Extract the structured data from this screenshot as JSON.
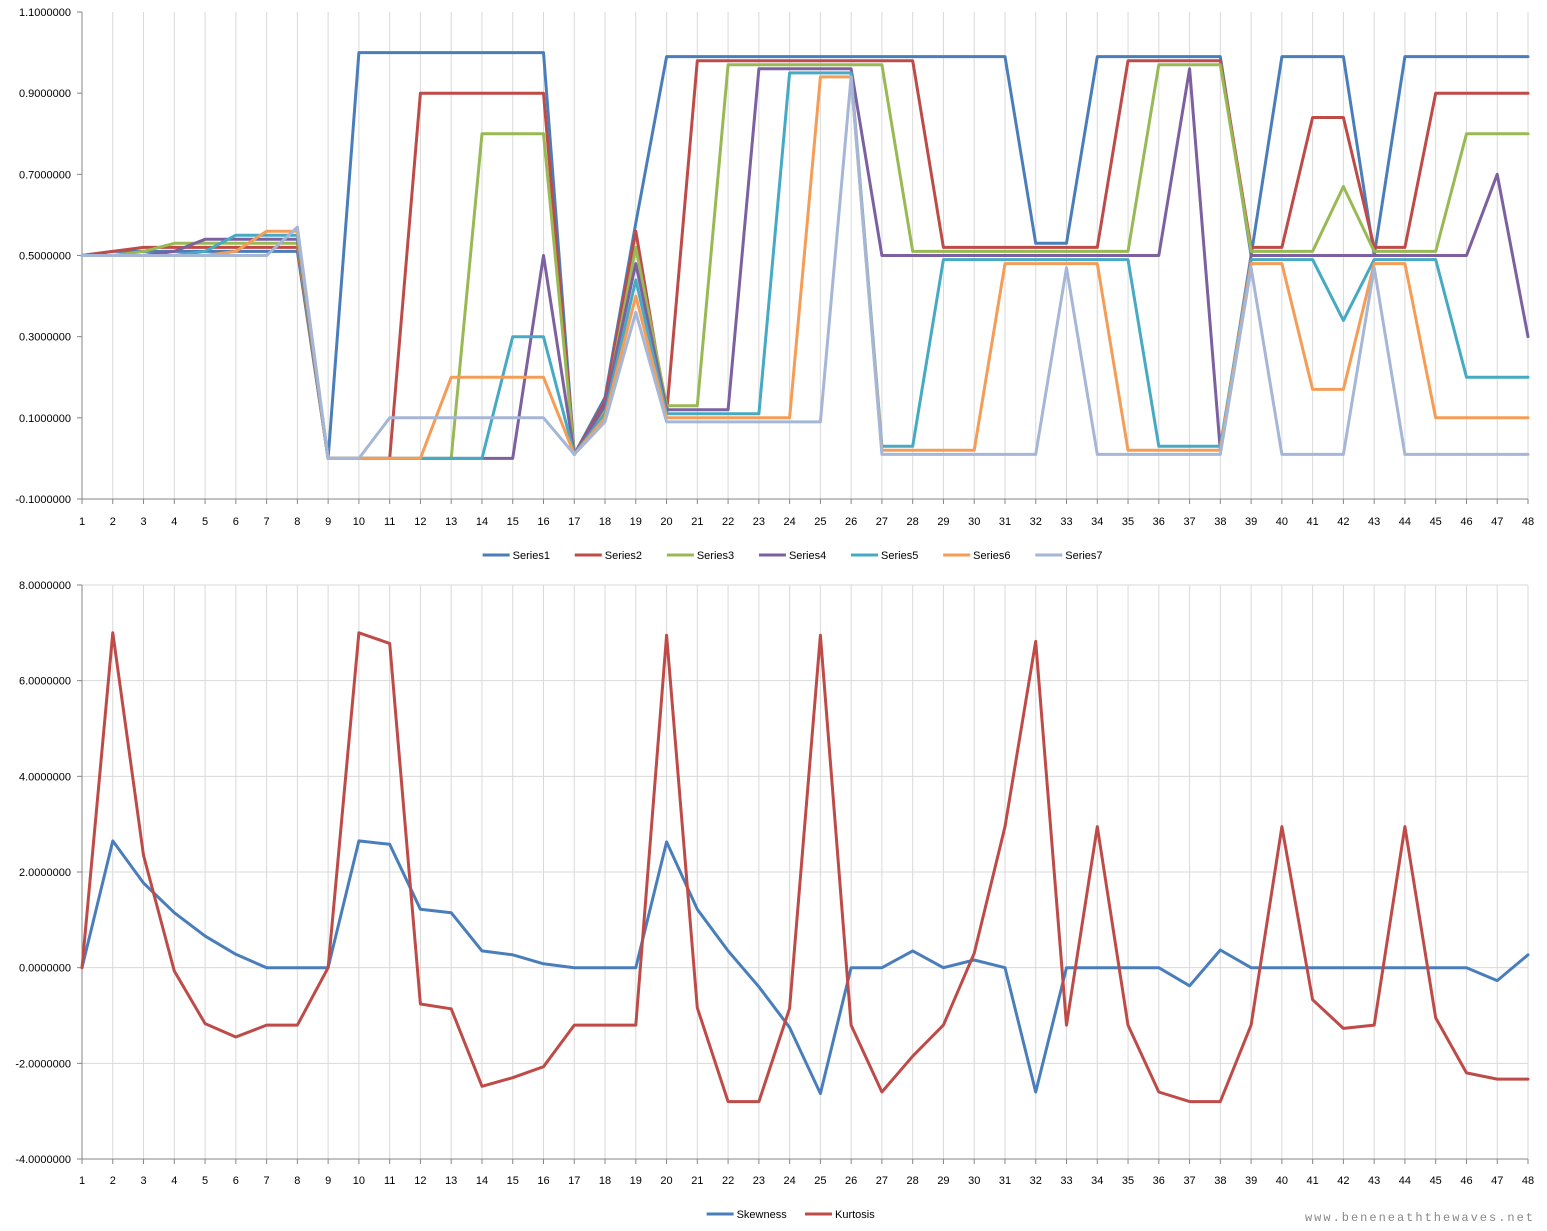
{
  "watermark": "www.beneneaththewaves.net",
  "chart_data": [
    {
      "type": "line",
      "title": "",
      "xlabel": "",
      "ylabel": "",
      "ylim": [
        -0.1,
        1.1
      ],
      "y_ticks": [
        "-0.1000000",
        "0.1000000",
        "0.3000000",
        "0.5000000",
        "0.7000000",
        "0.9000000",
        "1.1000000"
      ],
      "y_tick_values": [
        -0.1,
        0.1,
        0.3,
        0.5,
        0.7,
        0.9,
        1.1
      ],
      "grid": "vertical",
      "legend_position": "bottom",
      "x": [
        1,
        2,
        3,
        4,
        5,
        6,
        7,
        8,
        9,
        10,
        11,
        12,
        13,
        14,
        15,
        16,
        17,
        18,
        19,
        20,
        21,
        22,
        23,
        24,
        25,
        26,
        27,
        28,
        29,
        30,
        31,
        32,
        33,
        34,
        35,
        36,
        37,
        38,
        39,
        40,
        41,
        42,
        43,
        44,
        45,
        46,
        47,
        48
      ],
      "series": [
        {
          "name": "Series1",
          "color": "#4a7ebb",
          "values": [
            0.5,
            0.51,
            0.51,
            0.51,
            0.51,
            0.51,
            0.51,
            0.51,
            0,
            1.0,
            1.0,
            1.0,
            1.0,
            1.0,
            1.0,
            1.0,
            0.01,
            0.15,
            0.58,
            0.99,
            0.99,
            0.99,
            0.99,
            0.99,
            0.99,
            0.99,
            0.99,
            0.99,
            0.99,
            0.99,
            0.99,
            0.53,
            0.53,
            0.99,
            0.99,
            0.99,
            0.99,
            0.99,
            0.5,
            0.99,
            0.99,
            0.99,
            0.5,
            0.99,
            0.99,
            0.99,
            0.99,
            0.99
          ]
        },
        {
          "name": "Series2",
          "color": "#be4b48",
          "values": [
            0.5,
            0.51,
            0.52,
            0.52,
            0.52,
            0.52,
            0.52,
            0.52,
            0,
            0,
            0,
            0.9,
            0.9,
            0.9,
            0.9,
            0.9,
            0.01,
            0.14,
            0.56,
            0.11,
            0.98,
            0.98,
            0.98,
            0.98,
            0.98,
            0.98,
            0.98,
            0.98,
            0.52,
            0.52,
            0.52,
            0.52,
            0.52,
            0.52,
            0.98,
            0.98,
            0.98,
            0.98,
            0.52,
            0.52,
            0.84,
            0.84,
            0.52,
            0.52,
            0.9,
            0.9,
            0.9,
            0.9
          ]
        },
        {
          "name": "Series3",
          "color": "#98b954",
          "values": [
            0.5,
            0.5,
            0.51,
            0.53,
            0.53,
            0.53,
            0.53,
            0.53,
            0,
            0,
            0,
            0,
            0,
            0.8,
            0.8,
            0.8,
            0.01,
            0.12,
            0.52,
            0.13,
            0.13,
            0.97,
            0.97,
            0.97,
            0.97,
            0.97,
            0.97,
            0.51,
            0.51,
            0.51,
            0.51,
            0.51,
            0.51,
            0.51,
            0.51,
            0.97,
            0.97,
            0.97,
            0.51,
            0.51,
            0.51,
            0.67,
            0.51,
            0.51,
            0.51,
            0.8,
            0.8,
            0.8
          ]
        },
        {
          "name": "Series4",
          "color": "#7d60a0",
          "values": [
            0.5,
            0.5,
            0.5,
            0.51,
            0.54,
            0.54,
            0.54,
            0.54,
            0,
            0,
            0,
            0,
            0,
            0,
            0,
            0.5,
            0.01,
            0.13,
            0.48,
            0.12,
            0.12,
            0.12,
            0.96,
            0.96,
            0.96,
            0.96,
            0.5,
            0.5,
            0.5,
            0.5,
            0.5,
            0.5,
            0.5,
            0.5,
            0.5,
            0.5,
            0.96,
            0.02,
            0.5,
            0.5,
            0.5,
            0.5,
            0.5,
            0.5,
            0.5,
            0.5,
            0.7,
            0.3
          ]
        },
        {
          "name": "Series5",
          "color": "#46aac4",
          "values": [
            0.5,
            0.5,
            0.5,
            0.5,
            0.51,
            0.55,
            0.55,
            0.55,
            0,
            0,
            0,
            0,
            0,
            0,
            0.3,
            0.3,
            0.01,
            0.11,
            0.44,
            0.11,
            0.11,
            0.11,
            0.11,
            0.95,
            0.95,
            0.95,
            0.03,
            0.03,
            0.49,
            0.49,
            0.49,
            0.49,
            0.49,
            0.49,
            0.49,
            0.03,
            0.03,
            0.03,
            0.49,
            0.49,
            0.49,
            0.34,
            0.49,
            0.49,
            0.49,
            0.2,
            0.2,
            0.2
          ]
        },
        {
          "name": "Series6",
          "color": "#f59d56",
          "values": [
            0.5,
            0.5,
            0.5,
            0.5,
            0.5,
            0.51,
            0.56,
            0.56,
            0,
            0,
            0,
            0,
            0.2,
            0.2,
            0.2,
            0.2,
            0.01,
            0.1,
            0.4,
            0.1,
            0.1,
            0.1,
            0.1,
            0.1,
            0.94,
            0.94,
            0.02,
            0.02,
            0.02,
            0.02,
            0.48,
            0.48,
            0.48,
            0.48,
            0.02,
            0.02,
            0.02,
            0.02,
            0.48,
            0.48,
            0.17,
            0.17,
            0.48,
            0.48,
            0.1,
            0.1,
            0.1,
            0.1
          ]
        },
        {
          "name": "Series7",
          "color": "#a5b6d6",
          "values": [
            0.5,
            0.5,
            0.5,
            0.5,
            0.5,
            0.5,
            0.5,
            0.57,
            0,
            0,
            0.1,
            0.1,
            0.1,
            0.1,
            0.1,
            0.1,
            0.01,
            0.09,
            0.36,
            0.09,
            0.09,
            0.09,
            0.09,
            0.09,
            0.09,
            0.94,
            0.01,
            0.01,
            0.01,
            0.01,
            0.01,
            0.01,
            0.47,
            0.01,
            0.01,
            0.01,
            0.01,
            0.01,
            0.47,
            0.01,
            0.01,
            0.01,
            0.47,
            0.01,
            0.01,
            0.01,
            0.01,
            0.01
          ]
        }
      ]
    },
    {
      "type": "line",
      "title": "",
      "xlabel": "",
      "ylabel": "",
      "ylim": [
        -4,
        8
      ],
      "y_ticks": [
        "-4.0000000",
        "-2.0000000",
        "0.0000000",
        "2.0000000",
        "4.0000000",
        "6.0000000",
        "8.0000000"
      ],
      "y_tick_values": [
        -4,
        -2,
        0,
        2,
        4,
        6,
        8
      ],
      "grid": "both",
      "legend_position": "bottom",
      "x": [
        1,
        2,
        3,
        4,
        5,
        6,
        7,
        8,
        9,
        10,
        11,
        12,
        13,
        14,
        15,
        16,
        17,
        18,
        19,
        20,
        21,
        22,
        23,
        24,
        25,
        26,
        27,
        28,
        29,
        30,
        31,
        32,
        33,
        34,
        35,
        36,
        37,
        38,
        39,
        40,
        41,
        42,
        43,
        44,
        45,
        46,
        47,
        48
      ],
      "series": [
        {
          "name": "Skewness",
          "color": "#4a7ebb",
          "values": [
            0,
            2.65,
            1.77,
            1.15,
            0.66,
            0.28,
            0,
            0,
            0,
            2.65,
            2.58,
            1.22,
            1.15,
            0.35,
            0.27,
            0.08,
            0,
            0,
            0,
            2.63,
            1.22,
            0.35,
            -0.4,
            -1.25,
            -2.63,
            0,
            0,
            0.35,
            0,
            0.16,
            0,
            -2.6,
            0,
            0,
            0,
            0,
            -0.38,
            0.37,
            0,
            0,
            0,
            0,
            0,
            0,
            0,
            0,
            -0.27,
            0.27
          ]
        },
        {
          "name": "Kurtosis",
          "color": "#be4b48",
          "values": [
            0,
            7.0,
            2.35,
            -0.07,
            -1.17,
            -1.45,
            -1.2,
            -1.2,
            0,
            7.0,
            6.78,
            -0.76,
            -0.86,
            -2.48,
            -2.3,
            -2.07,
            -1.2,
            -1.2,
            -1.2,
            6.95,
            -0.84,
            -2.8,
            -2.8,
            -0.85,
            6.95,
            -1.2,
            -2.6,
            -1.85,
            -1.2,
            0.3,
            2.95,
            6.82,
            -1.2,
            2.95,
            -1.2,
            -2.6,
            -2.8,
            -2.8,
            -1.2,
            2.95,
            -0.67,
            -1.27,
            -1.2,
            2.95,
            -1.05,
            -2.2,
            -2.33,
            -2.33
          ]
        }
      ]
    }
  ]
}
